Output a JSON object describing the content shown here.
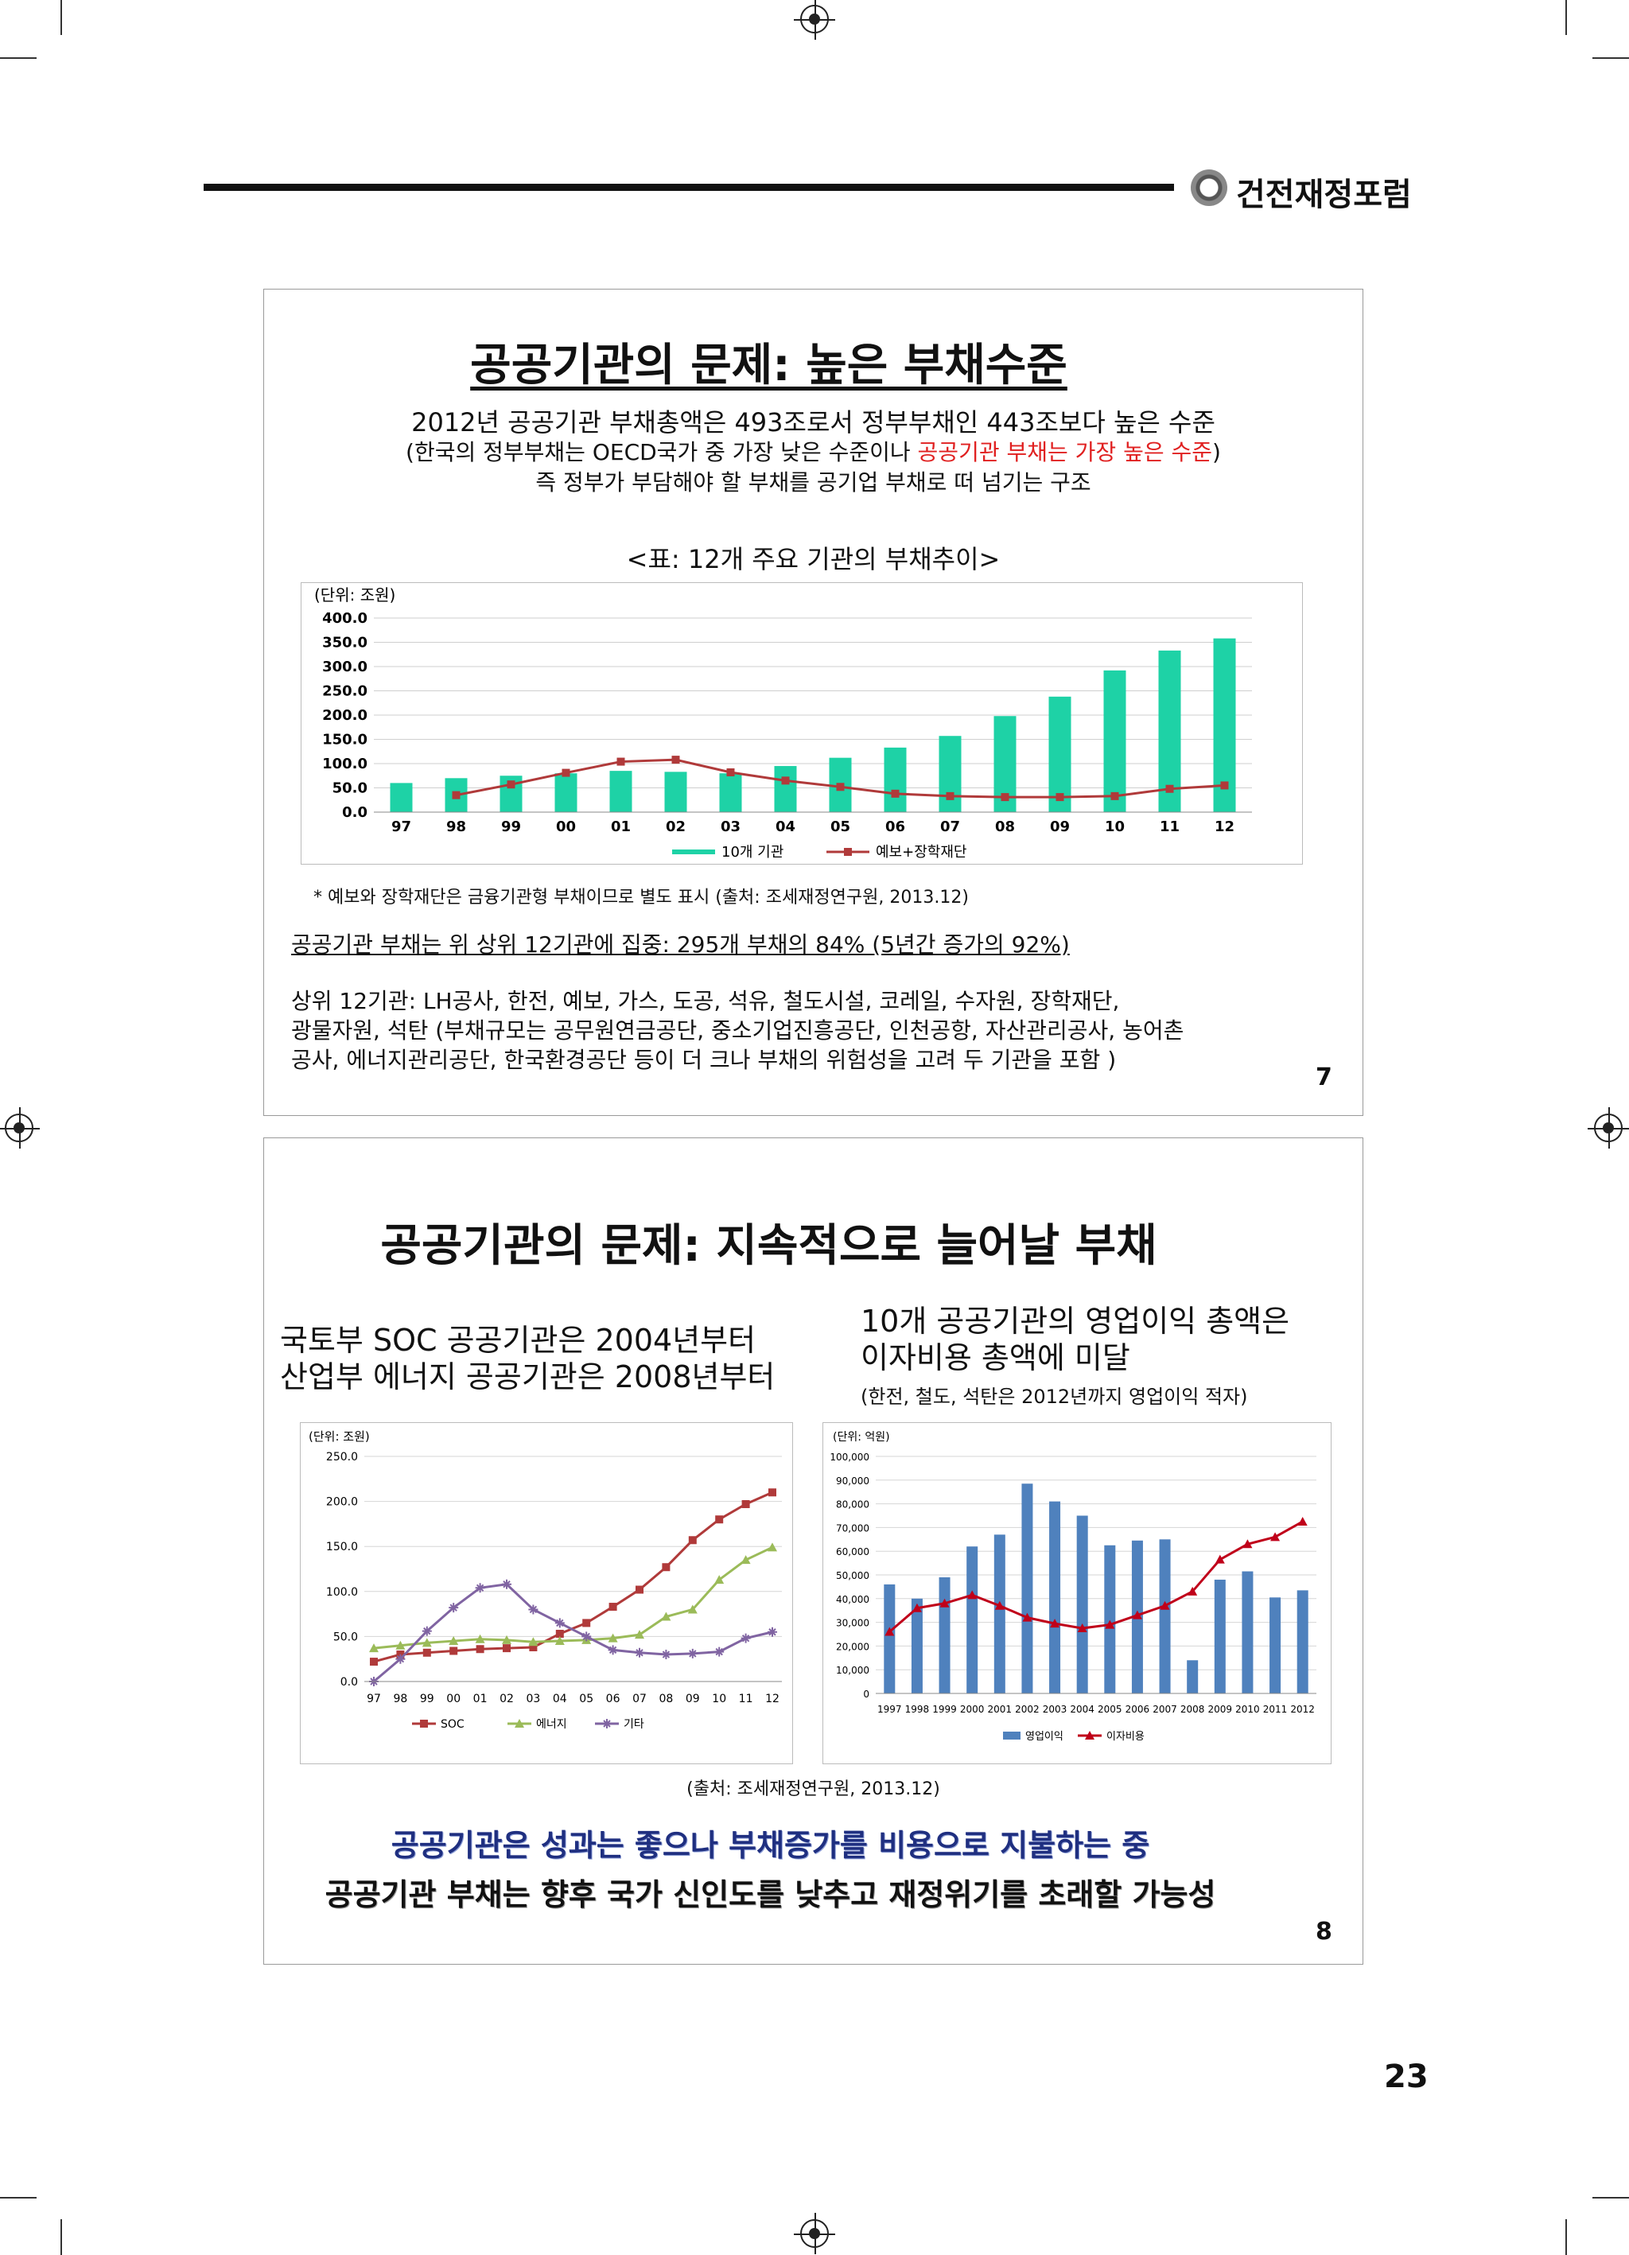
{
  "header": {
    "brand": "건전재정포럼"
  },
  "slide7": {
    "title": "공공기관의 문제: 높은 부채수준",
    "line1": "2012년 공공기관 부채총액은 493조로서 정부부채인 443조보다 높은 수준",
    "line2_pre": "(한국의 정부부채는 OECD국가 중 가장 낮은 수준이나 ",
    "line2_red": "공공기관 부채는 가장 높은 수준",
    "line2_post": ")",
    "line3": "즉 정부가 부담해야 할 부채를 공기업 부채로 떠 넘기는 구조",
    "table_caption": "<표: 12개 주요 기관의 부채추이>",
    "chart_unit": "(단위: 조원)",
    "footnote": "* 예보와 장학재단은 금융기관형 부채이므로 별도 표시 (출처: 조세재정연구원, 2013.12)",
    "concentration": "공공기관 부채는 위 상위 12기관에 집중: 295개 부채의 84% (5년간 증가의 92%)",
    "top12_line1": "상위 12기관: LH공사, 한전, 예보, 가스, 도공, 석유, 철도시설, 코레일, 수자원, 장학재단,",
    "top12_line2": "광물자원, 석탄 (부채규모는 공무원연금공단, 중소기업진흥공단, 인천공항, 자산관리공사, 농어촌",
    "top12_line3": "공사, 에너지관리공단, 한국환경공단 등이 더 크나 부채의 위험성을 고려 두 기관을 포함 )",
    "page": "7"
  },
  "slide8": {
    "title": "공공기관의 문제: 지속적으로 늘어날 부채",
    "left_line1": "국토부 SOC 공공기관은 2004년부터",
    "left_line2": "산업부 에너지 공공기관은 2008년부터",
    "right_line1": "10개 공공기관의 영업이익 총액은",
    "right_line2": "이자비용 총액에 미달",
    "right_line3": "(한전, 철도, 석탄은 2012년까지 영업이익 적자)",
    "left_chart_unit": "(단위: 조원)",
    "right_chart_unit": "(단위: 억원)",
    "source": "(출처: 조세재정연구원, 2013.12)",
    "conclusion1": "공공기관은 성과는 좋으나 부채증가를 비용으로 지불하는 중",
    "conclusion2": "공공기관 부채는 향후 국가 신인도를 낮추고 재정위기를 초래할 가능성",
    "page": "8"
  },
  "page_number": "23",
  "colors": {
    "teal": "#1ed2a6",
    "blue": "#1565c0",
    "maroon": "#b03a3a",
    "red_text": "#e02020",
    "navy": "#1f2f80",
    "bar_blue": "#4f81bd",
    "line_red": "#c0001a",
    "green": "#9bbb59",
    "purple": "#8064a2"
  },
  "chart_data": [
    {
      "type": "bar",
      "categories": [
        "97",
        "98",
        "99",
        "00",
        "01",
        "02",
        "03",
        "04",
        "05",
        "06",
        "07",
        "08",
        "09",
        "10",
        "11",
        "12"
      ],
      "series": [
        {
          "name": "10개 기관",
          "values": [
            60,
            70,
            75,
            80,
            85,
            83,
            80,
            95,
            112,
            133,
            157,
            198,
            238,
            292,
            333,
            358
          ]
        },
        {
          "name": "예보+장학재단",
          "type": "line",
          "values": [
            0,
            35,
            57,
            81,
            104,
            108,
            82,
            65,
            52,
            38,
            33,
            31,
            31,
            33,
            48,
            55
          ]
        }
      ],
      "ylim": [
        0,
        400
      ],
      "yticks": [
        "0.0",
        "50.0",
        "100.0",
        "150.0",
        "200.0",
        "250.0",
        "300.0",
        "350.0",
        "400.0"
      ]
    },
    {
      "type": "line",
      "categories": [
        "97",
        "98",
        "99",
        "00",
        "01",
        "02",
        "03",
        "04",
        "05",
        "06",
        "07",
        "08",
        "09",
        "10",
        "11",
        "12"
      ],
      "series": [
        {
          "name": "SOC",
          "values": [
            22,
            30,
            32,
            34,
            36,
            37,
            38,
            53,
            65,
            83,
            102,
            127,
            157,
            180,
            197,
            210
          ]
        },
        {
          "name": "에너지",
          "values": [
            37,
            40,
            43,
            45,
            47,
            46,
            44,
            45,
            46,
            48,
            52,
            72,
            80,
            113,
            135,
            149
          ]
        },
        {
          "name": "기타",
          "values": [
            0,
            25,
            56,
            82,
            104,
            108,
            80,
            65,
            50,
            35,
            32,
            30,
            31,
            33,
            48,
            55
          ]
        }
      ],
      "ylim": [
        0,
        250
      ],
      "yticks": [
        "0.0",
        "50.0",
        "100.0",
        "150.0",
        "200.0",
        "250.0"
      ]
    },
    {
      "type": "bar",
      "categories": [
        "1997",
        "1998",
        "1999",
        "2000",
        "2001",
        "2002",
        "2003",
        "2004",
        "2005",
        "2006",
        "2007",
        "2008",
        "2009",
        "2010",
        "2011",
        "2012"
      ],
      "series": [
        {
          "name": "영업이익",
          "values": [
            46000,
            40000,
            49000,
            62000,
            67000,
            88500,
            81000,
            75000,
            62500,
            64500,
            65000,
            14000,
            48000,
            51500,
            40500,
            43500
          ]
        },
        {
          "name": "이자비용",
          "type": "line",
          "values": [
            26000,
            36000,
            38000,
            41500,
            37000,
            32000,
            29500,
            27500,
            29000,
            33000,
            37000,
            43000,
            56500,
            63000,
            66000,
            72500
          ]
        }
      ],
      "ylim": [
        0,
        100000
      ],
      "yticks": [
        "0",
        "10,000",
        "20,000",
        "30,000",
        "40,000",
        "50,000",
        "60,000",
        "70,000",
        "80,000",
        "90,000",
        "100,000"
      ]
    }
  ]
}
